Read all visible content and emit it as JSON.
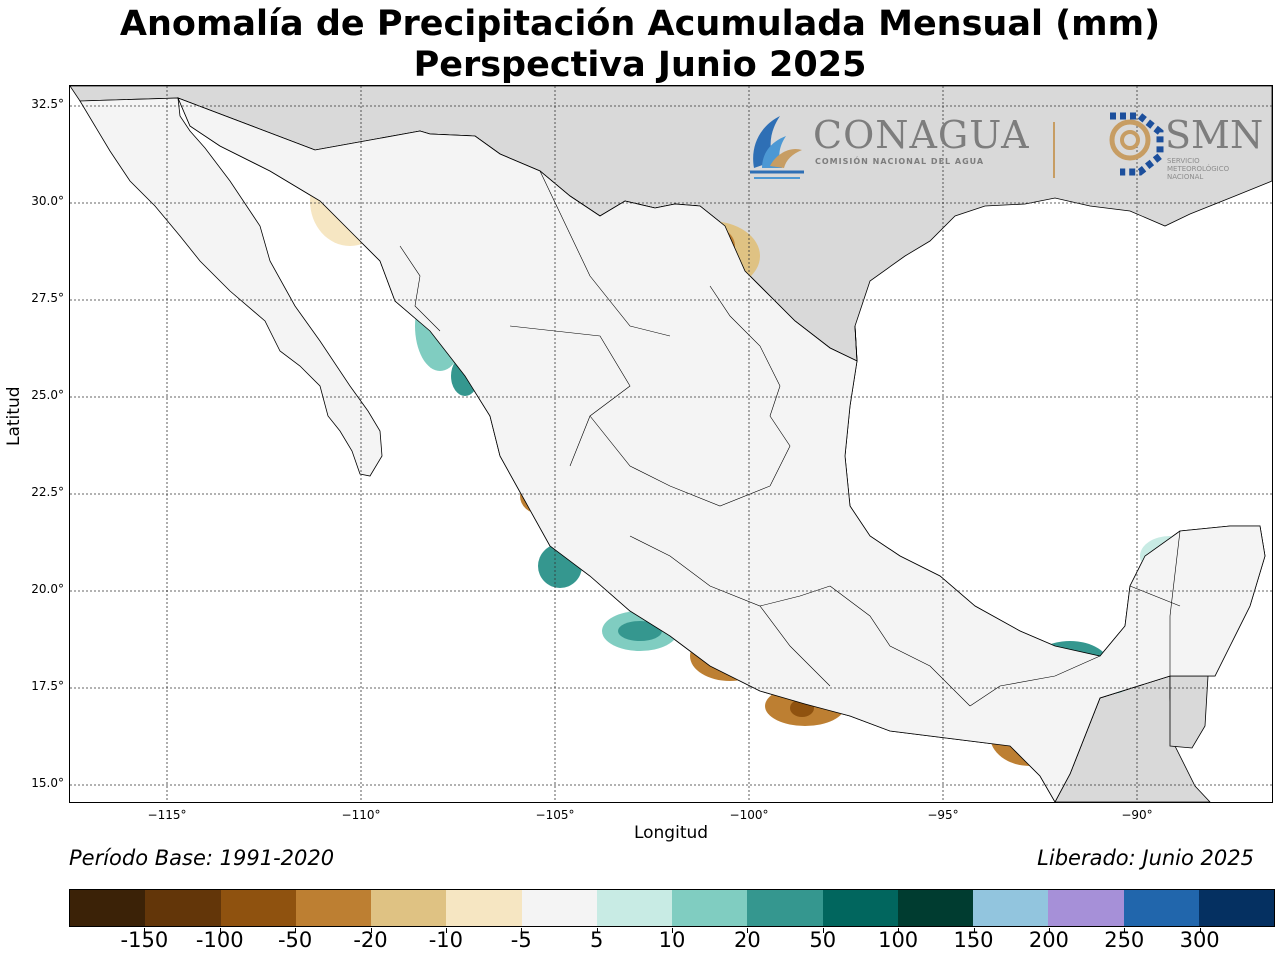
{
  "title_line1": "Anomalía de Precipitación Acumulada Mensual (mm)",
  "title_line2": "Perspectiva Junio 2025",
  "axes": {
    "xlabel": "Longitud",
    "ylabel": "Latitud",
    "x_ticks": [
      "−115°",
      "−110°",
      "−105°",
      "−100°",
      "−95°",
      "−90°"
    ],
    "y_ticks": [
      "32.5°",
      "30.0°",
      "27.5°",
      "25.0°",
      "22.5°",
      "20.0°",
      "17.5°",
      "15.0°"
    ],
    "x_range_deg": [
      -117.5,
      -86.5
    ],
    "y_range_deg": [
      14.5,
      33.0
    ],
    "grid": true
  },
  "logos": {
    "conagua_name": "CONAGUA",
    "conagua_subtitle": "COMISIÓN NACIONAL DEL AGUA",
    "smn_name": "SMN",
    "smn_subtitle": "SERVICIO METEOROLÓGICO NACIONAL"
  },
  "footer": {
    "base_period": "Período Base: 1991-2020",
    "released": "Liberado: Junio 2025"
  },
  "colorbar": {
    "labels": [
      "-150",
      "-100",
      "-50",
      "-20",
      "-10",
      "-5",
      "5",
      "10",
      "20",
      "50",
      "100",
      "150",
      "200",
      "250",
      "300"
    ],
    "colors": [
      "#3b2207",
      "#633609",
      "#8f520f",
      "#bd7f32",
      "#dfc283",
      "#f6e6c2",
      "#f4f4f4",
      "#c8ebe4",
      "#80cdc1",
      "#35978f",
      "#01665e",
      "#003c30",
      "#92c5de",
      "#a690d8",
      "#2166ac",
      "#053061"
    ]
  },
  "map_regions": {
    "colors": {
      "ocean": "#ffffff",
      "outside_land": "#d9d9d9",
      "neutral": "#f4f4f4",
      "dry_light": "#f6e6c2",
      "dry_mid": "#dfc283",
      "dry_strong": "#bd7f32",
      "dry_very": "#8f520f",
      "wet_light": "#c8ebe4",
      "wet_mid": "#80cdc1",
      "wet_strong": "#35978f",
      "wet_very": "#01665e"
    }
  }
}
